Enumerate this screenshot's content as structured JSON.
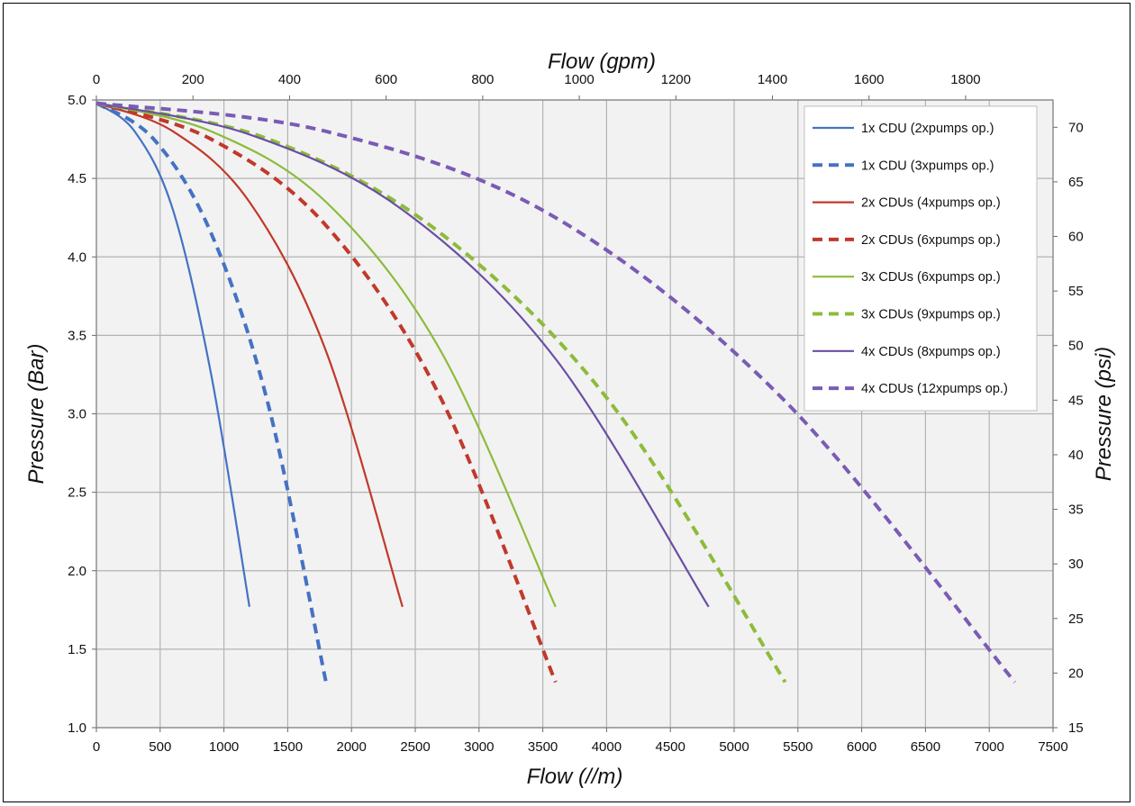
{
  "chart_data": {
    "type": "line",
    "xlabel": "Flow (//m)",
    "x2label": "Flow (gpm)",
    "ylabel": "Pressure (Bar)",
    "y2label": "Pressure (psi)",
    "xlim": [
      0,
      7500
    ],
    "x2lim": [
      0,
      1981
    ],
    "ylim": [
      1.0,
      5.0
    ],
    "y2lim": [
      15,
      72.5
    ],
    "xticks": [
      "0",
      "500",
      "1000",
      "1500",
      "2000",
      "2500",
      "3000",
      "3500",
      "4000",
      "4500",
      "5000",
      "5500",
      "6000",
      "6500",
      "7000",
      "7500"
    ],
    "x2ticks": [
      "0",
      "200",
      "400",
      "600",
      "800",
      "1000",
      "1200",
      "1400",
      "1600",
      "1800"
    ],
    "yticks": [
      "1.0",
      "1.5",
      "2.0",
      "2.5",
      "3.0",
      "3.5",
      "4.0",
      "4.5",
      "5.0"
    ],
    "y2ticks": [
      "15",
      "20",
      "25",
      "30",
      "35",
      "40",
      "45",
      "50",
      "55",
      "60",
      "65",
      "70"
    ],
    "grid": true,
    "legend_position": "top-right",
    "series": [
      {
        "name": "1x CDU (2xpumps op.)",
        "color": "#4472c4",
        "dash": "solid",
        "x": [
          0,
          300,
          600,
          900,
          1200
        ],
        "y": [
          4.98,
          4.8,
          4.3,
          3.25,
          1.77
        ]
      },
      {
        "name": "1x CDU (3xpumps op.)",
        "color": "#4472c4",
        "dash": "dashed",
        "x": [
          0,
          450,
          900,
          1350,
          1800
        ],
        "y": [
          4.98,
          4.75,
          4.15,
          3.05,
          1.29
        ]
      },
      {
        "name": "2x CDUs (4xpumps op.)",
        "color": "#c0392b",
        "dash": "solid",
        "x": [
          0,
          600,
          1200,
          1800,
          2400
        ],
        "y": [
          4.98,
          4.8,
          4.35,
          3.4,
          1.77
        ]
      },
      {
        "name": "2x CDUs (6xpumps op.)",
        "color": "#c0392b",
        "dash": "dashed",
        "x": [
          0,
          900,
          1800,
          2700,
          3600
        ],
        "y": [
          4.98,
          4.75,
          4.2,
          3.1,
          1.29
        ]
      },
      {
        "name": "3x CDUs (6xpumps op.)",
        "color": "#8dbb3a",
        "dash": "solid",
        "x": [
          0,
          900,
          1800,
          2700,
          3600
        ],
        "y": [
          4.98,
          4.8,
          4.35,
          3.4,
          1.77
        ]
      },
      {
        "name": "3x CDUs (9xpumps op.)",
        "color": "#8dbb3a",
        "dash": "dashed",
        "x": [
          0,
          1350,
          2700,
          4050,
          5400
        ],
        "y": [
          4.98,
          4.75,
          4.15,
          3.05,
          1.29
        ]
      },
      {
        "name": "4x CDUs (8xpumps op.)",
        "color": "#6a4fa3",
        "dash": "solid",
        "x": [
          0,
          1200,
          2400,
          3600,
          4800
        ],
        "y": [
          4.98,
          4.78,
          4.3,
          3.35,
          1.77
        ]
      },
      {
        "name": "4x CDUs (12xpumps op.)",
        "color": "#7a5bb5",
        "dash": "dashed",
        "x": [
          0,
          1800,
          3600,
          5400,
          7200
        ],
        "y": [
          4.98,
          4.8,
          4.25,
          3.08,
          1.29
        ]
      }
    ]
  }
}
